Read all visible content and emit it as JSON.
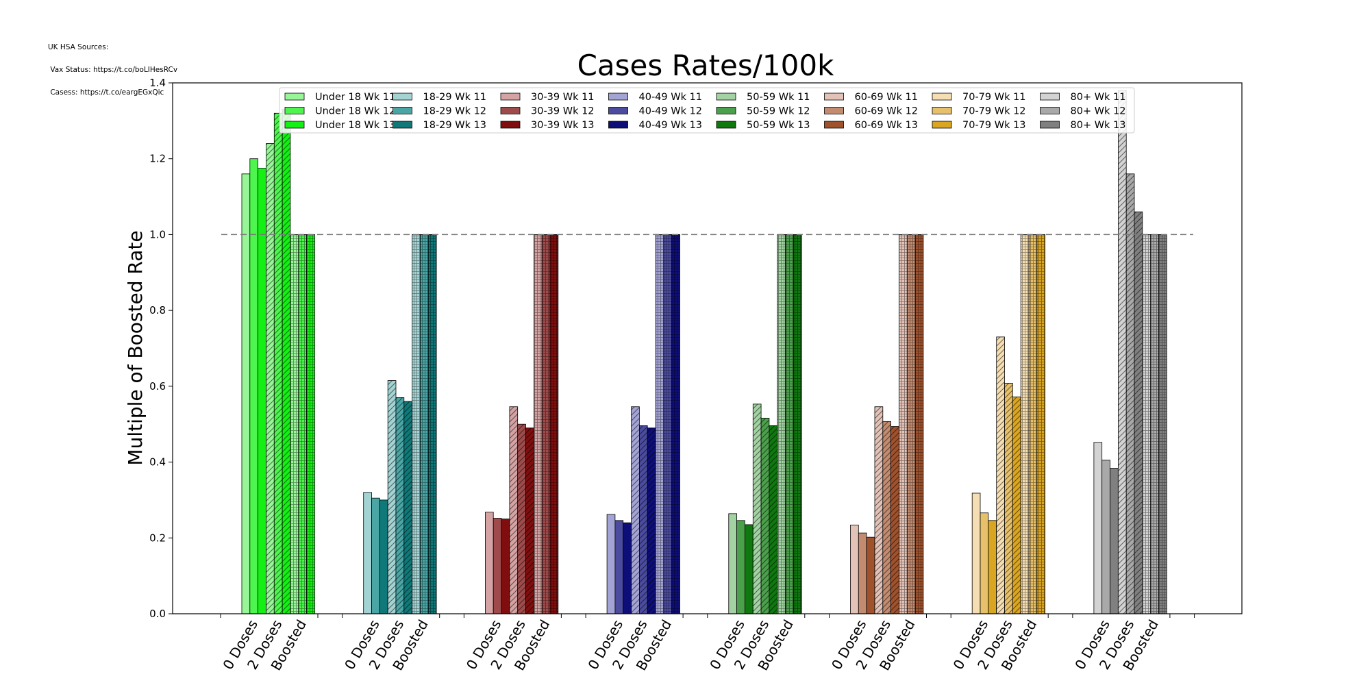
{
  "sources": {
    "line1": "UK HSA Sources:",
    "line2": " Vax Status: https://t.co/boLIHesRCv",
    "line3": " Casess: https://t.co/eargEGxQic"
  },
  "chart_data": {
    "type": "bar",
    "title": "Cases Rates/100k",
    "ylabel": "Multiple of Boosted Rate",
    "xlabel": "",
    "ylim": [
      0,
      1.4
    ],
    "yticks": [
      "0.0",
      "0.2",
      "0.4",
      "0.6",
      "0.8",
      "1.0",
      "1.2",
      "1.4"
    ],
    "reference_line": 1.0,
    "grid": false,
    "legend_placement": "top-center",
    "categories": [
      "0 Doses",
      "2 Doses",
      "Boosted"
    ],
    "weeks": [
      "Wk 11",
      "Wk 12",
      "Wk 13"
    ],
    "groups": [
      {
        "name": "Under 18",
        "colors": [
          "#98f598",
          "#4ef54e",
          "#14f014"
        ],
        "series": [
          {
            "name": "Under 18 Wk 11",
            "values": [
              1.16,
              1.24,
              1.0
            ]
          },
          {
            "name": "Under 18 Wk 12",
            "values": [
              1.2,
              1.32,
              1.0
            ]
          },
          {
            "name": "Under 18 Wk 13",
            "values": [
              1.175,
              1.33,
              1.0
            ]
          }
        ]
      },
      {
        "name": "18-29",
        "colors": [
          "#a3d3d3",
          "#4aa5a5",
          "#0f7878"
        ],
        "series": [
          {
            "name": "18-29 Wk 11",
            "values": [
              0.32,
              0.615,
              1.0
            ]
          },
          {
            "name": "18-29 Wk 12",
            "values": [
              0.305,
              0.57,
              1.0
            ]
          },
          {
            "name": "18-29 Wk 13",
            "values": [
              0.3,
              0.56,
              1.0
            ]
          }
        ]
      },
      {
        "name": "30-39",
        "colors": [
          "#d5a3a3",
          "#a04b4b",
          "#800e0e"
        ],
        "series": [
          {
            "name": "30-39 Wk 11",
            "values": [
              0.268,
              0.546,
              1.0
            ]
          },
          {
            "name": "30-39 Wk 12",
            "values": [
              0.252,
              0.5,
              1.0
            ]
          },
          {
            "name": "30-39 Wk 13",
            "values": [
              0.25,
              0.49,
              1.0
            ]
          }
        ]
      },
      {
        "name": "40-49",
        "colors": [
          "#a3a3d5",
          "#4b4ba0",
          "#0e0e78"
        ],
        "series": [
          {
            "name": "40-49 Wk 11",
            "values": [
              0.262,
              0.546,
              1.0
            ]
          },
          {
            "name": "40-49 Wk 12",
            "values": [
              0.246,
              0.496,
              1.0
            ]
          },
          {
            "name": "40-49 Wk 13",
            "values": [
              0.24,
              0.49,
              1.0
            ]
          }
        ]
      },
      {
        "name": "50-59",
        "colors": [
          "#a3d3a3",
          "#4ba04b",
          "#0f780f"
        ],
        "series": [
          {
            "name": "50-59 Wk 11",
            "values": [
              0.264,
              0.553,
              1.0
            ]
          },
          {
            "name": "50-59 Wk 12",
            "values": [
              0.246,
              0.516,
              1.0
            ]
          },
          {
            "name": "50-59 Wk 13",
            "values": [
              0.235,
              0.496,
              1.0
            ]
          }
        ]
      },
      {
        "name": "60-69",
        "colors": [
          "#e3c3b8",
          "#c38b70",
          "#a0522d"
        ],
        "series": [
          {
            "name": "60-69 Wk 11",
            "values": [
              0.234,
              0.546,
              1.0
            ]
          },
          {
            "name": "60-69 Wk 12",
            "values": [
              0.213,
              0.507,
              1.0
            ]
          },
          {
            "name": "60-69 Wk 13",
            "values": [
              0.202,
              0.494,
              1.0
            ]
          }
        ]
      },
      {
        "name": "70-79",
        "colors": [
          "#f5deb3",
          "#e6c06a",
          "#daa520"
        ],
        "series": [
          {
            "name": "70-79 Wk 11",
            "values": [
              0.318,
              0.73,
              1.0
            ]
          },
          {
            "name": "70-79 Wk 12",
            "values": [
              0.266,
              0.608,
              1.0
            ]
          },
          {
            "name": "70-79 Wk 13",
            "values": [
              0.246,
              0.572,
              1.0
            ]
          }
        ]
      },
      {
        "name": "80+",
        "colors": [
          "#d3d3d3",
          "#a9a9a9",
          "#808080"
        ],
        "series": [
          {
            "name": "80+ Wk 11",
            "values": [
              0.452,
              1.38,
              1.0
            ]
          },
          {
            "name": "80+ Wk 12",
            "values": [
              0.405,
              1.16,
              1.0
            ]
          },
          {
            "name": "80+ Wk 13",
            "values": [
              0.384,
              1.06,
              1.0
            ]
          }
        ]
      }
    ]
  }
}
